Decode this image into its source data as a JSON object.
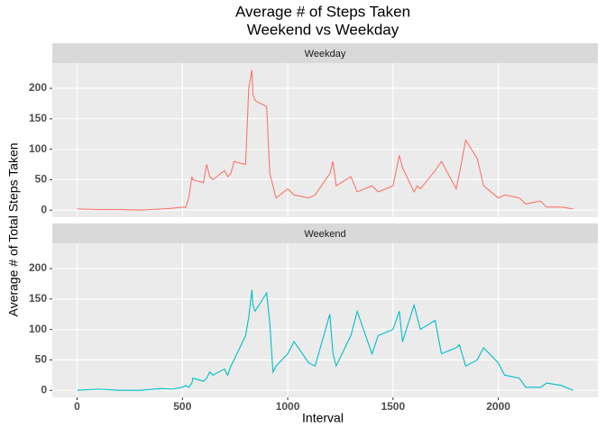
{
  "chart_data": {
    "type": "line",
    "title": "Average # of Steps Taken",
    "subtitle": "Weekend vs Weekday",
    "x_label": "Interval",
    "y_label": "Average # of Total Steps Taken",
    "x": [
      0,
      100,
      200,
      300,
      400,
      450,
      500,
      515,
      530,
      545,
      550,
      600,
      615,
      630,
      645,
      700,
      715,
      730,
      745,
      800,
      815,
      830,
      835,
      845,
      900,
      915,
      930,
      945,
      1000,
      1030,
      1100,
      1130,
      1200,
      1215,
      1230,
      1300,
      1330,
      1400,
      1430,
      1500,
      1530,
      1545,
      1600,
      1615,
      1630,
      1700,
      1730,
      1800,
      1815,
      1845,
      1900,
      1930,
      2000,
      2030,
      2100,
      2130,
      2200,
      2230,
      2300,
      2355
    ],
    "series": [
      {
        "name": "Weekday",
        "color": "#F8766D",
        "values": [
          2,
          1,
          1,
          0,
          2,
          3,
          5,
          4,
          20,
          55,
          50,
          45,
          75,
          55,
          50,
          65,
          55,
          60,
          80,
          75,
          200,
          230,
          190,
          180,
          170,
          60,
          40,
          20,
          35,
          25,
          20,
          25,
          60,
          80,
          40,
          55,
          30,
          40,
          30,
          40,
          90,
          70,
          30,
          40,
          35,
          65,
          80,
          35,
          60,
          115,
          85,
          40,
          20,
          25,
          20,
          10,
          15,
          5,
          5,
          2
        ]
      },
      {
        "name": "Weekend",
        "color": "#00BFC4",
        "values": [
          0,
          2,
          0,
          0,
          3,
          2,
          5,
          8,
          5,
          12,
          20,
          15,
          20,
          30,
          25,
          35,
          25,
          40,
          50,
          90,
          120,
          165,
          140,
          130,
          160,
          110,
          30,
          40,
          60,
          80,
          45,
          40,
          125,
          60,
          40,
          90,
          130,
          60,
          90,
          100,
          130,
          80,
          140,
          120,
          100,
          115,
          60,
          70,
          75,
          40,
          50,
          70,
          45,
          25,
          20,
          5,
          5,
          12,
          8,
          0
        ]
      }
    ],
    "xlim": [
      -117.75,
      2472.75
    ],
    "xticks": [
      0,
      500,
      1000,
      1500,
      2000
    ],
    "ylim": [
      -11.5,
      241.5
    ],
    "yticks": [
      0,
      50,
      100,
      150,
      200
    ],
    "grid": true
  }
}
